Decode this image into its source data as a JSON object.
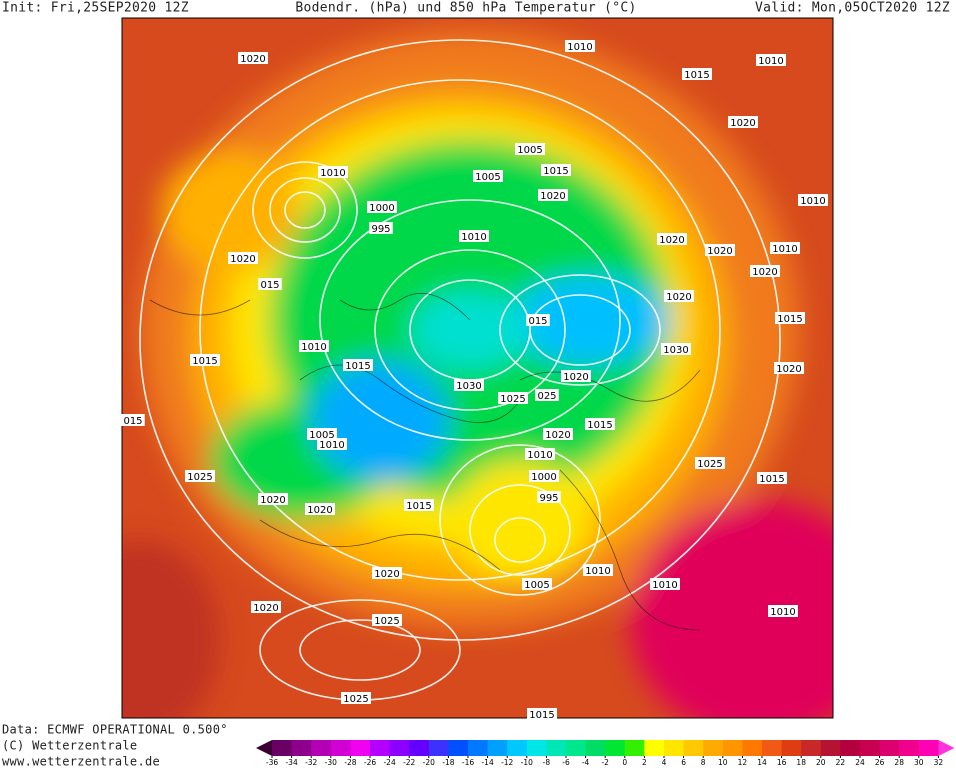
{
  "header": {
    "init": "Init: Fri,25SEP2020 12Z",
    "title": "Bodendr. (hPa) und 850 hPa Temperatur (°C)",
    "valid": "Valid: Mon,05OCT2020 12Z"
  },
  "map": {
    "isobar_labels": [
      "1010",
      "1020",
      "1015",
      "1010",
      "1020",
      "1005",
      "1005",
      "1015",
      "1010",
      "1020",
      "1000",
      "995",
      "1010",
      "1020",
      "1020",
      "1010",
      "1010",
      "1020",
      "1020",
      "015",
      "1020",
      "015",
      "1015",
      "1010",
      "1030",
      "1015",
      "1015",
      "1020",
      "1020",
      "1030",
      "1025",
      "025",
      "015",
      "1020",
      "1015",
      "1005",
      "1010",
      "1010",
      "1025",
      "1025",
      "1015",
      "1000",
      "995",
      "1015",
      "1020",
      "1020",
      "1010",
      "1020",
      "1010",
      "1005",
      "1020",
      "1010",
      "1025",
      "1025",
      "1015"
    ]
  },
  "colorbar": {
    "ticks": [
      -36,
      -34,
      -32,
      -30,
      -28,
      -26,
      -24,
      -22,
      -20,
      -18,
      -16,
      -14,
      -12,
      -10,
      -8,
      -6,
      -4,
      -2,
      0,
      2,
      4,
      6,
      8,
      10,
      12,
      14,
      16,
      18,
      20,
      22,
      24,
      26,
      28,
      30,
      32
    ],
    "colors": [
      "#3c0032",
      "#6a0064",
      "#8c008c",
      "#b400b4",
      "#d200d2",
      "#f000f0",
      "#b400ff",
      "#8c00ff",
      "#6400ff",
      "#3c32ff",
      "#0050ff",
      "#0078ff",
      "#00a0ff",
      "#00c8ff",
      "#00e6e6",
      "#00e6b4",
      "#00e68c",
      "#00dc64",
      "#00e632",
      "#32f000",
      "#ffff00",
      "#ffe600",
      "#ffc800",
      "#ffaa00",
      "#ff9600",
      "#ff7800",
      "#f05a14",
      "#e03c14",
      "#c82828",
      "#b41432",
      "#b4003c",
      "#c80050",
      "#dc006e",
      "#f0008c",
      "#ff00b4",
      "#ff32dc"
    ]
  },
  "footer": {
    "data": "Data: ECMWF OPERATIONAL 0.500°",
    "copyright": "(C) Wetterzentrale",
    "url": "www.wetterzentrale.de"
  }
}
